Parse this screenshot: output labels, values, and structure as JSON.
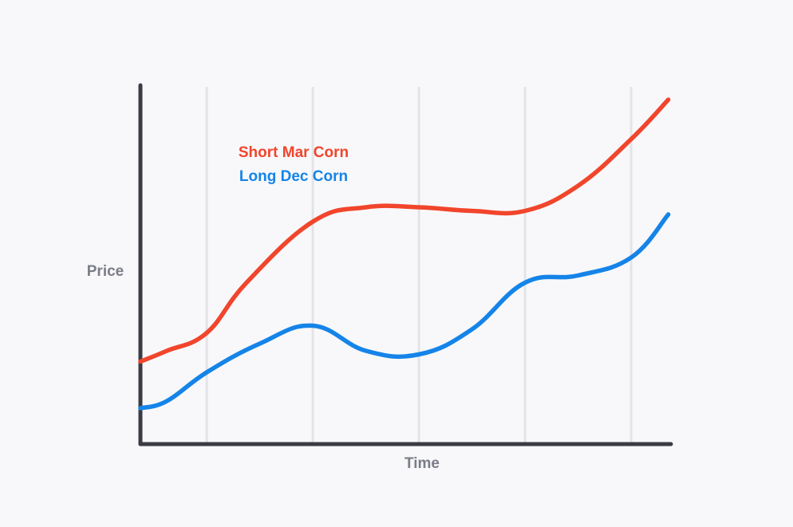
{
  "chart_data": {
    "type": "line",
    "title": "",
    "xlabel": "Time",
    "ylabel": "Price",
    "xlim": [
      0,
      10
    ],
    "ylim": [
      0,
      10
    ],
    "grid": {
      "vertical": true,
      "horizontal": false
    },
    "legend_placement": "top-left",
    "series": [
      {
        "name": "Short Mar Corn",
        "color": "#f1452c",
        "x": [
          0,
          0.5,
          1.25,
          2.0,
          3.25,
          4.25,
          5.25,
          6.25,
          7.25,
          8.25,
          9.25,
          9.95
        ],
        "values": [
          2.3,
          2.6,
          3.1,
          4.5,
          6.2,
          6.6,
          6.6,
          6.5,
          6.5,
          7.2,
          8.5,
          9.6
        ]
      },
      {
        "name": "Long Dec Corn",
        "color": "#1584e8",
        "x": [
          0,
          0.5,
          1.25,
          2.25,
          3.25,
          4.25,
          5.25,
          6.25,
          7.25,
          8.25,
          9.25,
          9.95
        ],
        "values": [
          1.0,
          1.2,
          2.0,
          2.8,
          3.3,
          2.6,
          2.5,
          3.2,
          4.5,
          4.7,
          5.2,
          6.4
        ]
      }
    ]
  }
}
